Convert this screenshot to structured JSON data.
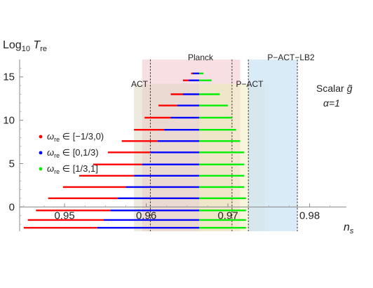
{
  "chart_data": {
    "type": "line",
    "title": "",
    "xlabel": "n",
    "xlabel_sub": "s",
    "ylabel": "Log",
    "ylabel_sub": "10",
    "ylabel_var": "T",
    "ylabel_var_sub": "re",
    "xlim": [
      0.9445,
      0.9845
    ],
    "ylim": [
      -2.8,
      17.0
    ],
    "grid": false,
    "x_ticks": [
      0.95,
      0.96,
      0.97,
      0.98
    ],
    "x_tick_labels": [
      "0.95",
      "0.96",
      "0.97",
      "0.98"
    ],
    "y_ticks": [
      0,
      5,
      10,
      15
    ],
    "y_tick_labels": [
      "0",
      "5",
      "10",
      "15"
    ],
    "bands": [
      {
        "label": "Planck",
        "x": [
          0.9595,
          0.9715
        ],
        "y_top": 17.0,
        "color": "#f2c4cc",
        "opacity": 0.55
      },
      {
        "label": "ACT",
        "x": [
          0.9585,
          0.9705
        ],
        "y_top": 14.2,
        "color": "#dcd6c0",
        "opacity": 0.5
      },
      {
        "label": "P−ACT",
        "x": [
          0.9665,
          0.9745
        ],
        "y_top": 14.2,
        "color": "#f2efc4",
        "opacity": 0.6
      },
      {
        "label": "P−ACT−LB2",
        "x": [
          0.9725,
          0.9785
        ],
        "y_top": 17.0,
        "color": "#c8e2f4",
        "opacity": 0.7
      }
    ],
    "dashed_lines": [
      0.9605,
      0.9705,
      0.9725,
      0.9785
    ],
    "annotations": [
      "Scalar",
      "g̃",
      "α=1"
    ],
    "legend": {
      "placement": "center-left",
      "entries": [
        {
          "name": "ω",
          "sub": "re",
          "range": " ∈ [−1/3,0)",
          "color": "#ff0000"
        },
        {
          "name": "ω",
          "sub": "re",
          "range": " ∈ [0,1/3)",
          "color": "#0000ff"
        },
        {
          "name": "ω",
          "sub": "re",
          "range": " ∈ [1/3,1]",
          "color": "#00ee00"
        }
      ]
    },
    "series": [
      {
        "name": "ωre ∈ [−1/3,0)",
        "color": "#ff0000"
      },
      {
        "name": "ωre ∈ [0,1/3)",
        "color": "#0000ff"
      },
      {
        "name": "ωre ∈ [1/3,1]",
        "color": "#00ee00"
      }
    ],
    "rows": [
      {
        "y": 15.4,
        "x_start": 0.9655,
        "x_blue_start": 0.9657,
        "x_split": 0.9665,
        "x_end": 0.967
      },
      {
        "y": 14.6,
        "x_start": 0.9645,
        "x_blue_start": 0.9652,
        "x_split": 0.9665,
        "x_end": 0.968
      },
      {
        "y": 13.0,
        "x_start": 0.963,
        "x_blue_start": 0.9645,
        "x_split": 0.9665,
        "x_end": 0.969
      },
      {
        "y": 11.7,
        "x_start": 0.9615,
        "x_blue_start": 0.9638,
        "x_split": 0.9665,
        "x_end": 0.97
      },
      {
        "y": 10.3,
        "x_start": 0.9598,
        "x_blue_start": 0.963,
        "x_split": 0.9665,
        "x_end": 0.9705
      },
      {
        "y": 8.9,
        "x_start": 0.9585,
        "x_blue_start": 0.9622,
        "x_split": 0.9665,
        "x_end": 0.971
      },
      {
        "y": 7.6,
        "x_start": 0.957,
        "x_blue_start": 0.9614,
        "x_split": 0.9665,
        "x_end": 0.9715
      },
      {
        "y": 6.3,
        "x_start": 0.9553,
        "x_blue_start": 0.9605,
        "x_split": 0.9665,
        "x_end": 0.972
      },
      {
        "y": 4.9,
        "x_start": 0.9535,
        "x_blue_start": 0.9595,
        "x_split": 0.9665,
        "x_end": 0.972
      },
      {
        "y": 3.6,
        "x_start": 0.9518,
        "x_blue_start": 0.9585,
        "x_split": 0.9665,
        "x_end": 0.972
      },
      {
        "y": 2.3,
        "x_start": 0.9498,
        "x_blue_start": 0.9575,
        "x_split": 0.9665,
        "x_end": 0.972
      },
      {
        "y": 1.0,
        "x_start": 0.948,
        "x_blue_start": 0.9565,
        "x_split": 0.9665,
        "x_end": 0.9722
      },
      {
        "y": -0.4,
        "x_start": 0.9465,
        "x_blue_start": 0.9556,
        "x_split": 0.9665,
        "x_end": 0.9722
      },
      {
        "y": -1.5,
        "x_start": 0.9455,
        "x_blue_start": 0.9548,
        "x_split": 0.9665,
        "x_end": 0.9722
      },
      {
        "y": -2.4,
        "x_start": 0.945,
        "x_blue_start": 0.954,
        "x_split": 0.9665,
        "x_end": 0.9722
      }
    ]
  }
}
